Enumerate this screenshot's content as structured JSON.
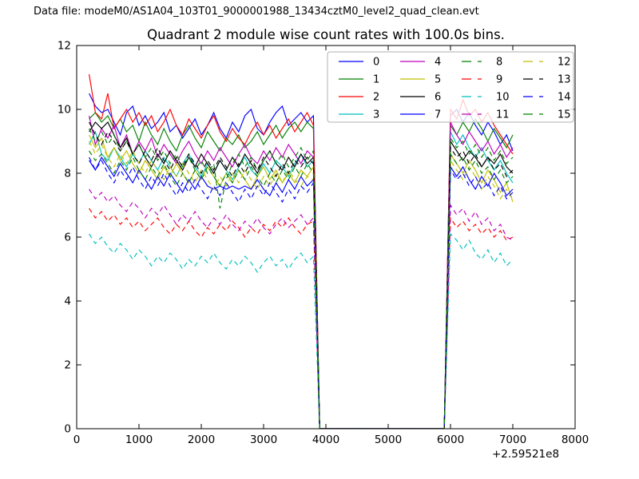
{
  "header": {
    "data_file_label": "Data file: modeM0/AS1A04_103T01_9000001988_13434cztM0_level2_quad_clean.evt"
  },
  "chart_data": {
    "type": "line",
    "title": "Quadrant 2 module wise count rates with 100.0s bins.",
    "xlabel": "",
    "ylabel": "",
    "x_offset_label": "+2.59521e8",
    "xlim": [
      0,
      8000
    ],
    "ylim": [
      0,
      12
    ],
    "x_ticks": [
      0,
      1000,
      2000,
      3000,
      4000,
      5000,
      6000,
      7000,
      8000
    ],
    "y_ticks": [
      0,
      2,
      4,
      6,
      8,
      10,
      12
    ],
    "grid": false,
    "legend": {
      "position": "upper right",
      "columns": 4,
      "frame_alpha": 0.8
    },
    "x_start": 200,
    "x_step": 100,
    "gap_start": 3900,
    "gap_end": 5900,
    "post_start": 6000,
    "series": [
      {
        "name": "0",
        "color": "#0000ff",
        "dash": false,
        "pre": [
          10.5,
          10.1,
          9.9,
          10.0,
          9.6,
          9.2,
          9.9,
          10.1,
          9.5,
          9.8,
          9.4,
          9.6,
          9.9,
          9.3,
          9.5,
          9.1,
          9.4,
          9.7,
          9.2,
          9.5,
          9.9,
          9.4,
          9.1,
          9.6,
          9.3,
          9.8,
          10.0,
          9.4,
          9.2,
          9.6,
          9.9,
          10.1,
          9.5,
          9.7,
          9.9,
          9.6,
          9.8
        ],
        "post": [
          9.8,
          10.0,
          9.6,
          9.9,
          9.5,
          9.2,
          9.6,
          9.3,
          8.9,
          9.2,
          8.7
        ]
      },
      {
        "name": "1",
        "color": "#008000",
        "dash": false,
        "pre": [
          9.7,
          9.9,
          9.6,
          9.8,
          9.4,
          9.7,
          9.3,
          9.5,
          9.0,
          9.6,
          9.2,
          8.9,
          9.4,
          9.0,
          8.7,
          9.2,
          9.5,
          9.1,
          8.8,
          9.3,
          9.0,
          8.7,
          9.1,
          8.9,
          9.2,
          8.8,
          9.0,
          9.3,
          8.9,
          9.2,
          9.5,
          9.1,
          9.4,
          9.6,
          9.3,
          9.6,
          9.4
        ],
        "post": [
          9.5,
          9.2,
          9.6,
          9.3,
          9.7,
          9.4,
          9.0,
          9.4,
          9.1,
          8.8,
          9.2
        ]
      },
      {
        "name": "2",
        "color": "#ff0000",
        "dash": false,
        "pre": [
          11.1,
          9.9,
          9.7,
          10.5,
          9.4,
          9.7,
          10.0,
          9.6,
          9.9,
          9.5,
          9.8,
          9.3,
          9.6,
          10.0,
          9.5,
          9.2,
          9.7,
          9.4,
          9.1,
          9.5,
          9.8,
          9.3,
          9.0,
          9.4,
          9.1,
          8.9,
          9.3,
          9.6,
          9.2,
          9.5,
          9.1,
          9.4,
          9.7,
          9.3,
          9.6,
          9.9,
          9.5
        ],
        "post": [
          10.0,
          9.7,
          10.3,
          9.8,
          10.0,
          9.6,
          9.9,
          9.5,
          9.2,
          8.9,
          8.6
        ]
      },
      {
        "name": "3",
        "color": "#00bfbf",
        "dash": false,
        "pre": [
          8.9,
          9.3,
          8.6,
          8.4,
          8.8,
          8.5,
          8.2,
          8.6,
          8.3,
          8.7,
          8.4,
          8.1,
          8.5,
          8.2,
          7.9,
          8.3,
          8.6,
          8.2,
          7.9,
          8.3,
          8.0,
          8.4,
          8.1,
          7.8,
          8.2,
          8.5,
          8.1,
          7.9,
          8.3,
          8.0,
          8.4,
          8.2,
          7.9,
          8.3,
          8.6,
          8.2,
          8.4
        ],
        "post": [
          9.3,
          8.9,
          9.2,
          8.8,
          8.5,
          8.8,
          8.4,
          8.1,
          8.4,
          8.0,
          7.7
        ]
      },
      {
        "name": "4",
        "color": "#bf00bf",
        "dash": false,
        "pre": [
          9.8,
          8.9,
          9.4,
          9.1,
          9.5,
          8.8,
          9.2,
          8.6,
          9.0,
          8.7,
          9.1,
          8.5,
          8.9,
          8.6,
          8.3,
          8.7,
          9.0,
          8.6,
          8.3,
          8.7,
          8.4,
          8.8,
          8.5,
          8.2,
          8.6,
          8.9,
          8.5,
          8.3,
          8.7,
          8.4,
          8.8,
          8.5,
          8.9,
          8.6,
          8.3,
          8.7,
          8.5
        ],
        "post": [
          9.6,
          9.2,
          8.9,
          9.3,
          9.0,
          8.7,
          9.0,
          8.6,
          8.9,
          8.5,
          8.8
        ]
      },
      {
        "name": "5",
        "color": "#bfbf00",
        "dash": false,
        "pre": [
          9.2,
          8.8,
          9.1,
          8.5,
          8.8,
          8.4,
          8.7,
          8.3,
          8.0,
          8.4,
          8.1,
          7.8,
          8.2,
          7.9,
          8.3,
          8.0,
          7.7,
          8.1,
          7.8,
          8.2,
          7.9,
          7.6,
          8.0,
          7.7,
          8.1,
          7.8,
          7.5,
          7.9,
          8.2,
          7.8,
          8.1,
          7.7,
          8.0,
          7.7,
          8.1,
          7.9,
          8.2
        ],
        "post": [
          8.6,
          8.3,
          8.0,
          8.4,
          8.1,
          7.7,
          8.1,
          7.8,
          7.4,
          7.7,
          7.1
        ]
      },
      {
        "name": "6",
        "color": "#000000",
        "dash": false,
        "pre": [
          9.3,
          9.6,
          9.4,
          9.6,
          9.2,
          8.8,
          9.1,
          8.6,
          8.9,
          8.5,
          8.2,
          8.6,
          8.3,
          8.7,
          8.4,
          8.1,
          8.5,
          8.2,
          8.6,
          8.3,
          8.0,
          8.4,
          8.1,
          8.5,
          8.2,
          8.6,
          8.3,
          8.0,
          8.4,
          8.7,
          8.3,
          8.1,
          8.5,
          8.2,
          8.6,
          8.3,
          8.5
        ],
        "post": [
          9.0,
          8.7,
          8.4,
          8.7,
          8.5,
          8.2,
          8.5,
          8.3,
          8.6,
          8.2,
          8.0
        ]
      },
      {
        "name": "7",
        "color": "#0000ff",
        "dash": false,
        "pre": [
          8.4,
          8.1,
          8.5,
          8.2,
          7.9,
          8.3,
          8.0,
          7.7,
          8.1,
          7.8,
          7.5,
          7.9,
          7.6,
          8.0,
          7.7,
          7.4,
          7.8,
          7.5,
          7.9,
          7.6,
          7.5,
          7.6,
          7.5,
          7.6,
          7.5,
          7.6,
          7.5,
          7.8,
          7.5,
          7.3,
          7.7,
          7.4,
          7.8,
          7.5,
          7.9,
          7.6,
          7.8
        ],
        "post": [
          8.2,
          7.9,
          8.2,
          7.8,
          7.5,
          7.9,
          7.6,
          8.0,
          7.7,
          7.3,
          7.5
        ]
      },
      {
        "name": "8",
        "color": "#008000",
        "dash": true,
        "pre": [
          9.4,
          9.0,
          9.3,
          8.9,
          9.2,
          8.7,
          9.0,
          8.6,
          8.9,
          8.5,
          8.8,
          8.4,
          8.7,
          8.3,
          8.6,
          8.2,
          8.5,
          8.1,
          8.4,
          8.0,
          8.3,
          6.9,
          7.8,
          8.3,
          8.6,
          8.2,
          8.5,
          8.1,
          8.4,
          8.7,
          8.3,
          8.6,
          8.2,
          8.5,
          8.8,
          8.4,
          8.7
        ],
        "post": [
          9.1,
          8.8,
          9.0,
          8.6,
          8.9,
          8.5,
          8.8,
          8.4,
          8.7,
          8.3,
          8.5
        ]
      },
      {
        "name": "9",
        "color": "#ff0000",
        "dash": true,
        "pre": [
          6.9,
          6.6,
          6.8,
          6.5,
          6.7,
          6.4,
          6.6,
          6.3,
          6.5,
          6.2,
          6.4,
          6.6,
          6.3,
          6.1,
          6.4,
          6.2,
          6.5,
          6.2,
          6.0,
          6.3,
          6.1,
          6.4,
          6.2,
          6.5,
          6.3,
          6.0,
          6.3,
          6.1,
          6.4,
          6.2,
          6.5,
          6.3,
          6.6,
          6.3,
          6.1,
          6.4,
          6.5
        ],
        "post": [
          6.6,
          6.3,
          6.5,
          6.2,
          6.4,
          6.1,
          6.3,
          6.0,
          6.2,
          5.9,
          6.0
        ]
      },
      {
        "name": "10",
        "color": "#00bfbf",
        "dash": true,
        "pre": [
          6.1,
          5.8,
          6.0,
          5.7,
          5.5,
          5.8,
          5.6,
          5.3,
          5.6,
          5.4,
          5.1,
          5.4,
          5.2,
          5.5,
          5.3,
          5.0,
          5.3,
          5.1,
          5.4,
          5.2,
          5.5,
          5.2,
          5.0,
          5.3,
          5.1,
          5.4,
          5.2,
          4.9,
          5.2,
          5.4,
          5.1,
          5.3,
          5.0,
          5.3,
          5.5,
          5.2,
          5.4
        ],
        "post": [
          6.1,
          5.9,
          5.6,
          5.9,
          5.5,
          5.3,
          5.6,
          5.2,
          5.5,
          5.1,
          5.3
        ]
      },
      {
        "name": "11",
        "color": "#bf00bf",
        "dash": true,
        "pre": [
          7.5,
          7.2,
          7.4,
          7.1,
          7.3,
          7.0,
          6.8,
          7.1,
          6.9,
          6.6,
          6.9,
          6.7,
          7.0,
          6.7,
          6.4,
          6.7,
          6.5,
          6.8,
          6.5,
          6.3,
          6.6,
          6.4,
          6.7,
          6.4,
          6.2,
          6.5,
          6.3,
          6.6,
          6.3,
          6.1,
          6.4,
          6.6,
          6.3,
          6.5,
          6.7,
          6.4,
          6.6
        ],
        "post": [
          7.0,
          6.7,
          6.9,
          6.5,
          6.8,
          6.4,
          6.6,
          6.2,
          6.4,
          6.0,
          5.9
        ]
      },
      {
        "name": "12",
        "color": "#bfbf00",
        "dash": true,
        "pre": [
          9.0,
          8.6,
          8.9,
          8.5,
          8.2,
          8.6,
          8.3,
          8.7,
          8.3,
          8.0,
          8.4,
          8.1,
          7.8,
          8.2,
          7.9,
          8.3,
          8.0,
          7.7,
          8.1,
          7.8,
          7.5,
          7.9,
          7.6,
          8.0,
          7.7,
          8.1,
          7.8,
          7.5,
          7.9,
          7.6,
          8.0,
          7.7,
          8.1,
          7.8,
          7.6,
          7.9,
          7.8
        ],
        "post": [
          8.4,
          8.1,
          7.8,
          8.2,
          7.9,
          7.5,
          7.9,
          7.6,
          7.2,
          7.5,
          7.2
        ]
      },
      {
        "name": "13",
        "color": "#000000",
        "dash": true,
        "pre": [
          9.6,
          9.2,
          8.9,
          9.3,
          9.0,
          8.7,
          9.0,
          8.6,
          8.3,
          8.7,
          8.4,
          8.8,
          8.4,
          8.1,
          8.5,
          8.2,
          8.6,
          8.3,
          8.0,
          8.4,
          8.1,
          8.5,
          8.2,
          7.9,
          8.3,
          8.0,
          8.4,
          8.1,
          8.5,
          8.2,
          7.9,
          8.3,
          8.0,
          8.4,
          8.2,
          8.5,
          8.3
        ],
        "post": [
          8.8,
          8.5,
          8.7,
          8.3,
          8.6,
          8.2,
          8.5,
          8.1,
          8.3,
          7.9,
          8.1
        ]
      },
      {
        "name": "14",
        "color": "#0000ff",
        "dash": true,
        "pre": [
          8.5,
          8.1,
          8.4,
          8.0,
          7.7,
          8.1,
          7.8,
          8.2,
          7.8,
          7.5,
          7.9,
          7.6,
          8.0,
          7.6,
          7.3,
          7.7,
          7.4,
          7.8,
          7.5,
          7.2,
          7.6,
          7.3,
          7.7,
          7.4,
          7.1,
          7.5,
          7.2,
          7.6,
          7.3,
          7.7,
          7.4,
          7.1,
          7.5,
          7.2,
          7.6,
          7.4,
          7.7
        ],
        "post": [
          8.1,
          7.8,
          8.0,
          7.6,
          7.9,
          7.5,
          7.7,
          7.3,
          7.6,
          7.2,
          7.4
        ]
      },
      {
        "name": "15",
        "color": "#008000",
        "dash": true,
        "pre": [
          8.7,
          8.4,
          8.6,
          8.3,
          8.0,
          8.4,
          8.1,
          8.5,
          8.1,
          7.8,
          8.2,
          7.9,
          8.3,
          7.9,
          7.6,
          8.0,
          7.7,
          8.1,
          7.8,
          8.2,
          7.9,
          7.6,
          8.0,
          7.7,
          8.1,
          7.8,
          8.2,
          7.9,
          7.6,
          8.0,
          7.7,
          8.1,
          7.8,
          8.2,
          7.9,
          8.3,
          8.0
        ],
        "post": [
          8.6,
          8.3,
          8.5,
          8.1,
          8.4,
          8.0,
          8.2,
          7.8,
          8.1,
          7.7,
          7.9
        ]
      }
    ]
  }
}
